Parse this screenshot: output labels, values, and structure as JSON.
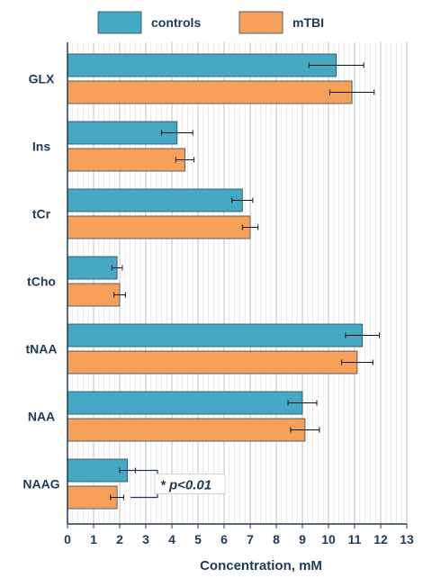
{
  "chart_data": {
    "type": "bar",
    "orientation": "horizontal",
    "categories": [
      "GLX",
      "Ins",
      "tCr",
      "tCho",
      "tNAA",
      "NAA",
      "NAAG"
    ],
    "series": [
      {
        "name": "controls",
        "color": "#45a9c4",
        "values": [
          10.3,
          4.2,
          6.7,
          1.9,
          11.3,
          9.0,
          2.3
        ],
        "errors": [
          1.05,
          0.6,
          0.4,
          0.2,
          0.65,
          0.55,
          0.3
        ]
      },
      {
        "name": "mTBI",
        "color": "#f7a05a",
        "values": [
          10.9,
          4.5,
          7.0,
          2.0,
          11.1,
          9.1,
          1.9
        ],
        "errors": [
          0.85,
          0.35,
          0.3,
          0.22,
          0.6,
          0.55,
          0.25
        ]
      }
    ],
    "xlabel": "Concentration, mM",
    "xlim": [
      0,
      13
    ],
    "xticks": [
      "0",
      "1",
      "2",
      "3",
      "4",
      "5",
      "6",
      "7",
      "8",
      "9",
      "10",
      "11",
      "12",
      "13"
    ],
    "grid": true,
    "legend_position": "top",
    "annotation": {
      "text": "* p<0.01",
      "category": "NAAG"
    }
  }
}
